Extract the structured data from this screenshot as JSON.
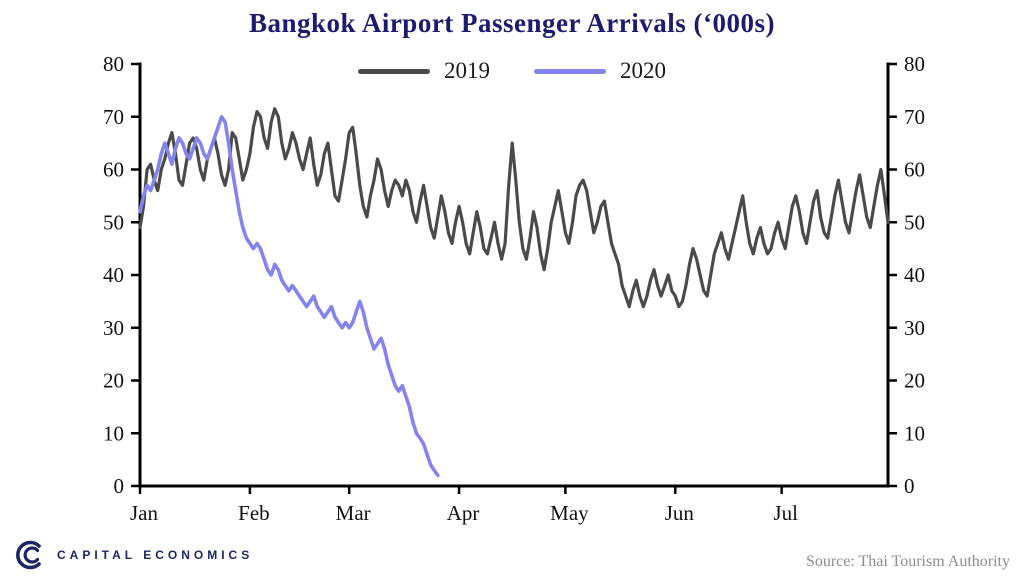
{
  "colors": {
    "title": "#1d1b6d",
    "axis": "#000000",
    "tick_text": "#111111",
    "legend_text": "#1a1a1a",
    "source_text": "#8c8c8c",
    "brand": "#1c2663",
    "background": "#ffffff"
  },
  "footer": {
    "brand": "CAPITAL ECONOMICS",
    "source": "Source: Thai Tourism Authority"
  },
  "chart_data": {
    "type": "line",
    "title": "Bangkok Airport Passenger Arrivals (‘000s)",
    "xlabel": "",
    "ylabel": "",
    "ylim": [
      0,
      80
    ],
    "y_ticks": [
      0,
      10,
      20,
      30,
      40,
      50,
      60,
      70,
      80
    ],
    "y_axis_sides": [
      "left",
      "right"
    ],
    "x_tick_labels": [
      "Jan",
      "Feb",
      "Mar",
      "Apr",
      "May",
      "Jun",
      "Jul"
    ],
    "x_tick_days": [
      0,
      31,
      59,
      90,
      120,
      151,
      181
    ],
    "x_range_days": [
      0,
      211
    ],
    "x_unit": "day of year (daily data)",
    "grid": false,
    "legend_position": "top-center",
    "series": [
      {
        "name": "2019",
        "color": "#4a4a4a",
        "stroke_width": 3.2,
        "start_day": 0,
        "values": [
          49,
          53,
          60,
          61,
          58,
          56,
          60,
          62,
          65,
          67,
          63,
          58,
          57,
          61,
          65,
          66,
          64,
          60,
          58,
          62,
          64,
          66,
          63,
          59,
          57,
          60,
          67,
          66,
          62,
          58,
          60,
          63,
          68,
          71,
          70,
          66,
          64,
          69,
          71.5,
          70,
          65,
          62,
          64,
          67,
          65,
          62,
          60,
          63,
          66,
          61,
          57,
          59,
          63,
          65,
          60,
          55,
          54,
          58,
          62,
          67,
          68,
          63,
          57,
          53,
          51,
          55,
          58,
          62,
          60,
          56,
          53,
          56,
          58,
          57,
          55,
          58,
          56,
          52,
          50,
          54,
          57,
          53,
          49,
          47,
          51,
          55,
          52,
          48,
          46,
          50,
          53,
          50,
          46,
          44,
          48,
          52,
          49,
          45,
          44,
          47,
          50,
          46,
          43,
          46,
          57,
          65,
          58,
          50,
          45,
          43,
          47,
          52,
          49,
          44,
          41,
          45,
          50,
          53,
          56,
          52,
          48,
          46,
          50,
          55,
          57,
          58,
          56,
          52,
          48,
          50,
          53,
          54,
          50,
          46,
          44,
          42,
          38,
          36,
          34,
          37,
          39,
          36,
          34,
          36,
          39,
          41,
          38,
          36,
          38,
          40,
          37,
          36,
          34,
          35,
          38,
          42,
          45,
          43,
          40,
          37,
          36,
          40,
          44,
          46,
          48,
          45,
          43,
          46,
          49,
          52,
          55,
          50,
          46,
          44,
          47,
          49,
          46,
          44,
          45,
          48,
          50,
          47,
          45,
          49,
          53,
          55,
          52,
          48,
          46,
          50,
          54,
          56,
          51,
          48,
          47,
          51,
          55,
          58,
          54,
          50,
          48,
          52,
          56,
          59,
          55,
          51,
          49,
          53,
          57,
          60,
          55,
          50
        ]
      },
      {
        "name": "2020",
        "color": "#8584ee",
        "stroke_width": 3.6,
        "start_day": 0,
        "values": [
          52,
          55,
          57,
          56,
          58,
          60,
          63,
          65,
          63,
          61,
          64,
          66,
          65,
          63,
          62,
          64,
          66,
          65,
          63,
          62,
          64,
          66,
          68,
          70,
          69,
          65,
          60,
          56,
          52,
          49,
          47,
          46,
          45,
          46,
          45,
          43,
          41,
          40,
          42,
          41,
          39,
          38,
          37,
          38,
          37,
          36,
          35,
          34,
          35,
          36,
          34,
          33,
          32,
          33,
          34,
          32,
          31,
          30,
          31,
          30,
          31,
          33,
          35,
          33,
          30,
          28,
          26,
          27,
          28,
          26,
          23,
          21,
          19,
          18,
          19,
          17,
          15,
          12,
          10,
          9,
          8,
          6,
          4,
          3,
          2
        ]
      }
    ]
  }
}
